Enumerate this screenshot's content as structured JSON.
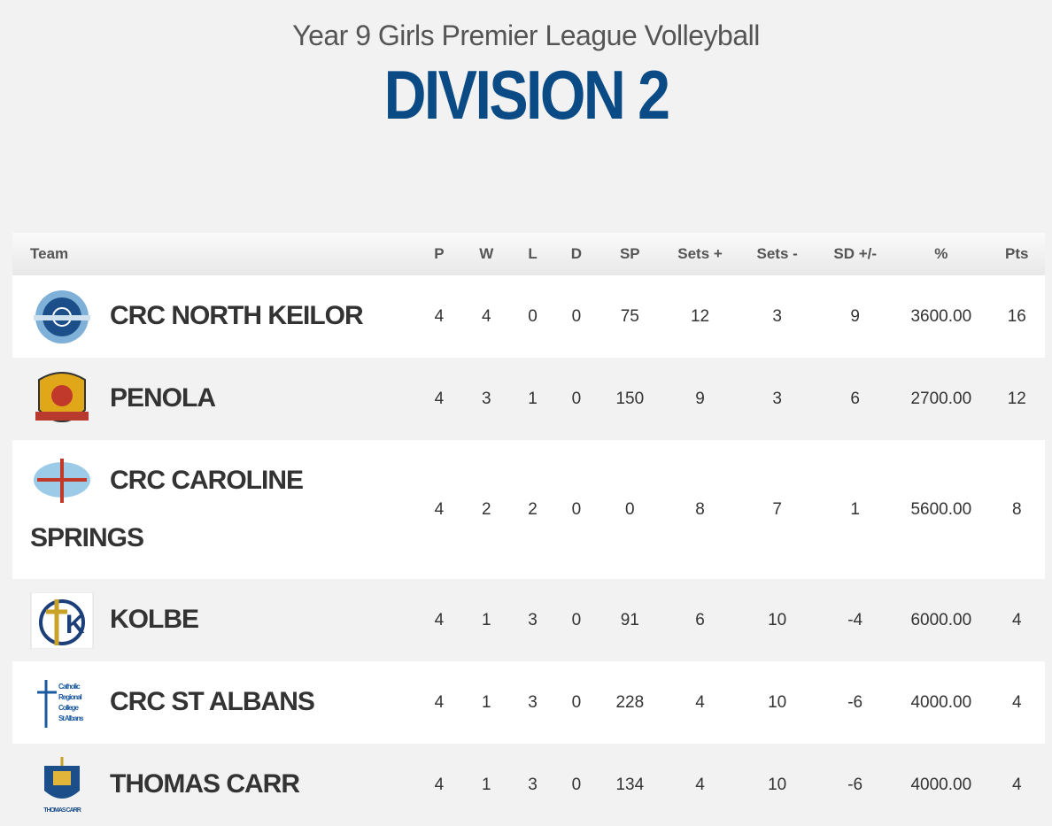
{
  "header": {
    "subtitle": "Year 9 Girls Premier League Volleyball",
    "title": "DIVISION 2"
  },
  "table": {
    "columns": [
      "Team",
      "P",
      "W",
      "L",
      "D",
      "SP",
      "Sets +",
      "Sets -",
      "SD +/-",
      "%",
      "Pts"
    ],
    "rows": [
      [
        "CRC NORTH KEILOR",
        4,
        4,
        0,
        0,
        75,
        12,
        3,
        9,
        "3600.00",
        16
      ],
      [
        "PENOLA",
        4,
        3,
        1,
        0,
        150,
        9,
        3,
        6,
        "2700.00",
        12
      ],
      [
        "CRC CAROLINE SPRINGS",
        4,
        2,
        2,
        0,
        0,
        8,
        7,
        1,
        "5600.00",
        8
      ],
      [
        "KOLBE",
        4,
        1,
        3,
        0,
        91,
        6,
        10,
        -4,
        "6000.00",
        4
      ],
      [
        "CRC ST ALBANS",
        4,
        1,
        3,
        0,
        228,
        4,
        10,
        -6,
        "4000.00",
        4
      ],
      [
        "THOMAS CARR",
        4,
        1,
        3,
        0,
        134,
        4,
        10,
        -6,
        "4000.00",
        4
      ]
    ]
  }
}
